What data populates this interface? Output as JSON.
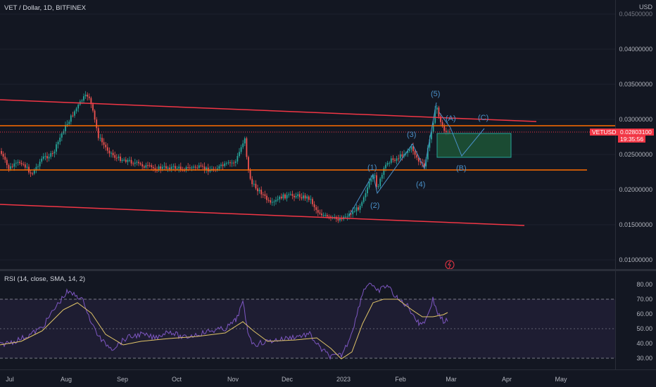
{
  "header": {
    "symbol_title": "VET / Dollar, 1D, BITFINEX"
  },
  "rsi_legend": "RSI (14, close, SMA, 14, 2)",
  "price_axis": {
    "currency": "USD",
    "ticks": [
      "0.04500000",
      "0.04000000",
      "0.03500000",
      "0.03000000",
      "0.02500000",
      "0.02000000",
      "0.01500000",
      "0.01000000"
    ],
    "symbol_tag": "VETUSD",
    "last_price": "0.02803100",
    "countdown": "19:35:56"
  },
  "rsi_axis": {
    "ticks": [
      "80.00",
      "70.00",
      "60.00",
      "50.00",
      "40.00",
      "30.00"
    ]
  },
  "time_axis": {
    "labels": [
      "Jul",
      "Aug",
      "Sep",
      "Oct",
      "Nov",
      "Dec",
      "2023",
      "Feb",
      "Mar",
      "Apr",
      "May"
    ]
  },
  "wave_labels": [
    "(1)",
    "(2)",
    "(3)",
    "(4)",
    "(5)",
    "(A)",
    "(B)",
    "(C)"
  ],
  "colors": {
    "background": "#131722",
    "up": "#26a69a",
    "down": "#ef5350",
    "channel": "#f23645",
    "support": "#ff6d00",
    "rsi": "#7e57c2",
    "rsi_ma": "#e0c468",
    "wave": "#4a90c8",
    "box": "#1f5e3a"
  },
  "chart_data": {
    "type": "candlestick",
    "price_ylim": [
      0.0095,
      0.046
    ],
    "rsi_ylim": [
      25,
      83
    ],
    "rsi_band": [
      30,
      70
    ]
  }
}
